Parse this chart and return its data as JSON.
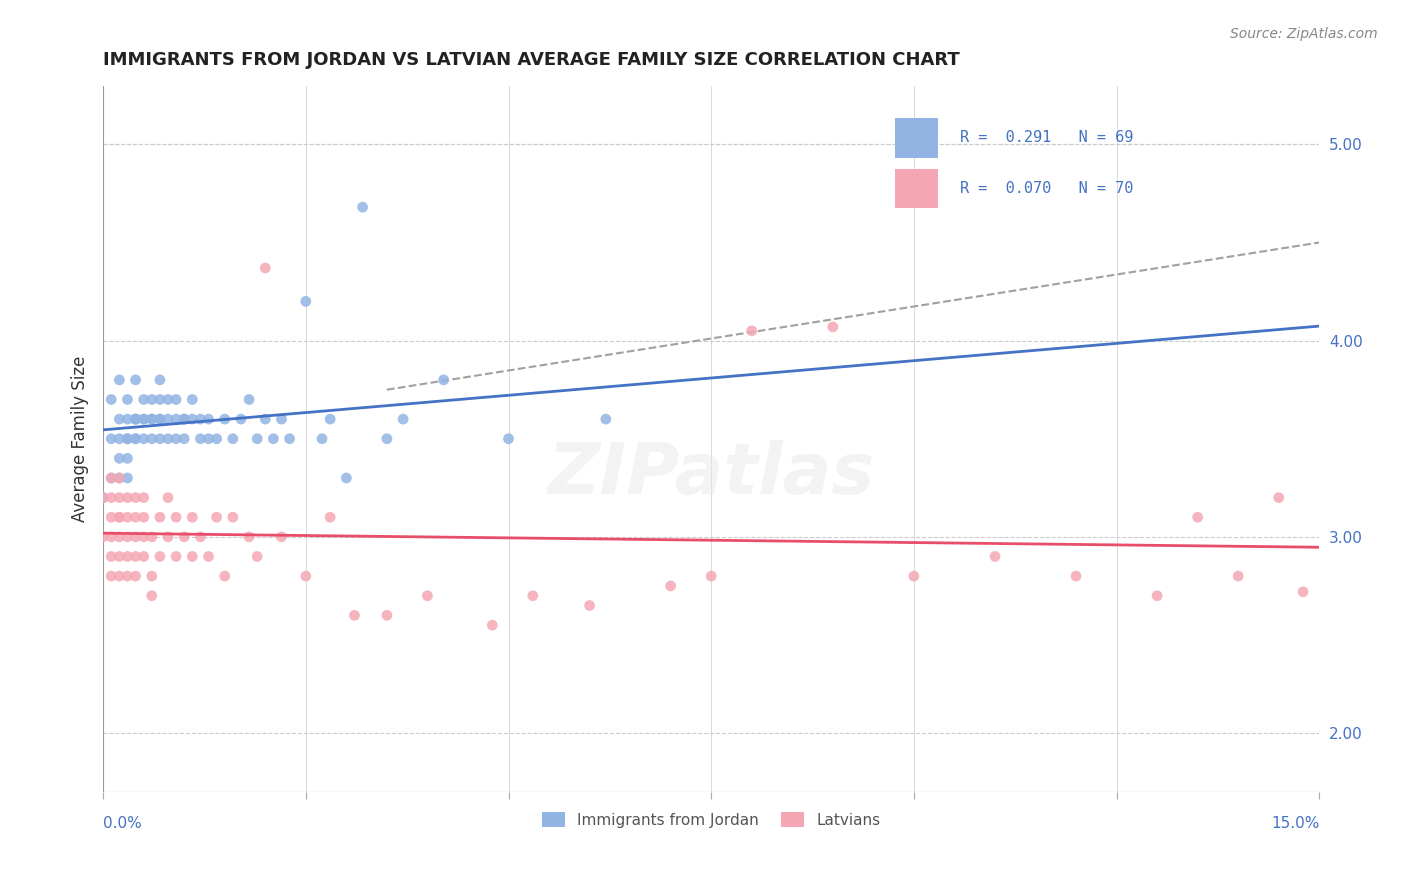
{
  "title": "IMMIGRANTS FROM JORDAN VS LATVIAN AVERAGE FAMILY SIZE CORRELATION CHART",
  "source_text": "Source: ZipAtlas.com",
  "xlabel": "",
  "ylabel": "Average Family Size",
  "xlim": [
    0.0,
    0.15
  ],
  "ylim": [
    1.7,
    5.3
  ],
  "right_yticks": [
    2.0,
    3.0,
    4.0,
    5.0
  ],
  "xtick_labels": [
    "0.0%",
    "15.0%"
  ],
  "legend1_text": [
    "R =  0.291   N = 69",
    "R =  0.070   N = 70"
  ],
  "legend_bottom": [
    "Immigrants from Jordan",
    "Latvians"
  ],
  "jordan_color": "#92b4e3",
  "latvian_color": "#f4a7b3",
  "jordan_line_color": "#4472c4",
  "latvian_line_color": "#e84e6a",
  "trend_line_dash_color": "#a0a0a0",
  "watermark": "ZIPatlas",
  "jordan_scatter_x": [
    0.0,
    0.001,
    0.001,
    0.001,
    0.002,
    0.002,
    0.002,
    0.002,
    0.002,
    0.003,
    0.003,
    0.003,
    0.003,
    0.003,
    0.003,
    0.004,
    0.004,
    0.004,
    0.004,
    0.004,
    0.004,
    0.005,
    0.005,
    0.005,
    0.005,
    0.006,
    0.006,
    0.006,
    0.006,
    0.007,
    0.007,
    0.007,
    0.007,
    0.007,
    0.008,
    0.008,
    0.008,
    0.009,
    0.009,
    0.009,
    0.01,
    0.01,
    0.01,
    0.011,
    0.011,
    0.012,
    0.012,
    0.013,
    0.013,
    0.014,
    0.015,
    0.016,
    0.017,
    0.018,
    0.019,
    0.02,
    0.021,
    0.022,
    0.023,
    0.025,
    0.027,
    0.028,
    0.03,
    0.032,
    0.035,
    0.037,
    0.042,
    0.05,
    0.062
  ],
  "jordan_scatter_y": [
    3.2,
    3.5,
    3.3,
    3.7,
    3.5,
    3.3,
    3.6,
    3.8,
    3.4,
    3.6,
    3.5,
    3.4,
    3.7,
    3.3,
    3.5,
    3.6,
    3.5,
    3.6,
    3.8,
    3.5,
    3.6,
    3.6,
    3.7,
    3.5,
    3.6,
    3.6,
    3.6,
    3.5,
    3.7,
    3.6,
    3.7,
    3.5,
    3.6,
    3.8,
    3.6,
    3.7,
    3.5,
    3.5,
    3.6,
    3.7,
    3.6,
    3.5,
    3.6,
    3.7,
    3.6,
    3.5,
    3.6,
    3.5,
    3.6,
    3.5,
    3.6,
    3.5,
    3.6,
    3.7,
    3.5,
    3.6,
    3.5,
    3.6,
    3.5,
    4.2,
    3.5,
    3.6,
    3.3,
    4.68,
    3.5,
    3.6,
    3.8,
    3.5,
    3.6
  ],
  "latvian_scatter_x": [
    0.0,
    0.0,
    0.001,
    0.001,
    0.001,
    0.001,
    0.001,
    0.001,
    0.002,
    0.002,
    0.002,
    0.002,
    0.002,
    0.002,
    0.002,
    0.003,
    0.003,
    0.003,
    0.003,
    0.003,
    0.004,
    0.004,
    0.004,
    0.004,
    0.004,
    0.005,
    0.005,
    0.005,
    0.005,
    0.006,
    0.006,
    0.006,
    0.007,
    0.007,
    0.008,
    0.008,
    0.009,
    0.009,
    0.01,
    0.011,
    0.011,
    0.012,
    0.013,
    0.014,
    0.015,
    0.016,
    0.018,
    0.019,
    0.02,
    0.022,
    0.025,
    0.028,
    0.031,
    0.035,
    0.04,
    0.048,
    0.053,
    0.06,
    0.07,
    0.075,
    0.08,
    0.09,
    0.1,
    0.11,
    0.12,
    0.13,
    0.135,
    0.14,
    0.145,
    0.148
  ],
  "latvian_scatter_y": [
    3.2,
    3.0,
    3.1,
    3.2,
    2.9,
    3.3,
    3.0,
    2.8,
    3.1,
    3.2,
    3.0,
    2.8,
    3.3,
    2.9,
    3.1,
    3.2,
    3.0,
    2.9,
    3.1,
    2.8,
    3.0,
    3.2,
    2.8,
    3.1,
    2.9,
    3.2,
    2.9,
    3.0,
    3.1,
    2.7,
    3.0,
    2.8,
    3.1,
    2.9,
    3.0,
    3.2,
    2.9,
    3.1,
    3.0,
    2.9,
    3.1,
    3.0,
    2.9,
    3.1,
    2.8,
    3.1,
    3.0,
    2.9,
    4.37,
    3.0,
    2.8,
    3.1,
    2.6,
    2.6,
    2.7,
    2.55,
    2.7,
    2.65,
    2.75,
    2.8,
    4.05,
    4.07,
    2.8,
    2.9,
    2.8,
    2.7,
    3.1,
    2.8,
    3.2,
    2.72
  ]
}
